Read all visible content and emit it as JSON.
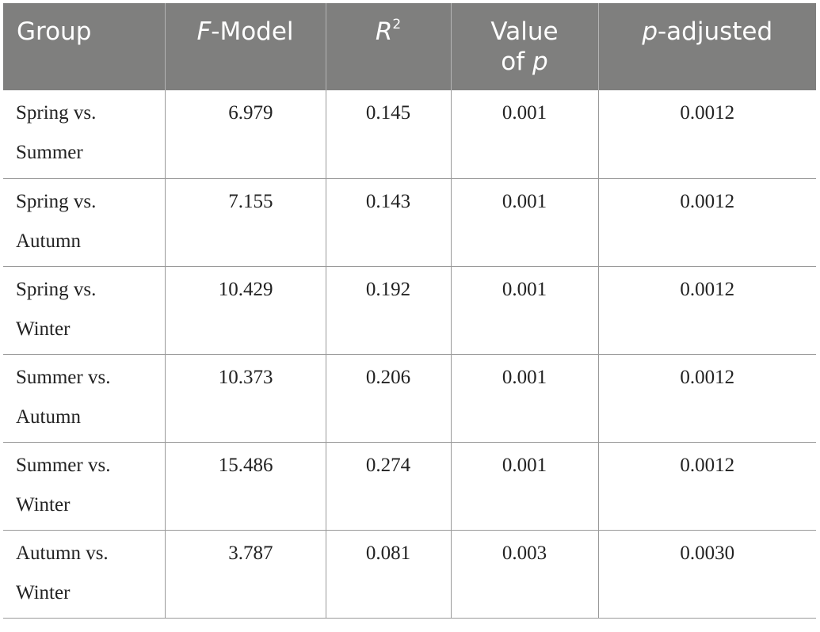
{
  "table": {
    "headers": {
      "group": "Group",
      "fmodel_italic": "F",
      "fmodel_rest": "-Model",
      "r2_italic": "R",
      "r2_sup": "2",
      "value_line1": "Value",
      "value_line2_prefix": "of ",
      "value_line2_italic": "p",
      "padj_italic": "p",
      "padj_rest": "-adjusted"
    },
    "rows": [
      {
        "group_line1": "Spring vs.",
        "group_line2": "Summer",
        "fmodel": "6.979",
        "r2": "0.145",
        "p": "0.001",
        "padj": "0.0012"
      },
      {
        "group_line1": "Spring vs.",
        "group_line2": "Autumn",
        "fmodel": "7.155",
        "r2": "0.143",
        "p": "0.001",
        "padj": "0.0012"
      },
      {
        "group_line1": "Spring vs.",
        "group_line2": "Winter",
        "fmodel": "10.429",
        "r2": "0.192",
        "p": "0.001",
        "padj": "0.0012"
      },
      {
        "group_line1": "Summer vs.",
        "group_line2": "Autumn",
        "fmodel": "10.373",
        "r2": "0.206",
        "p": "0.001",
        "padj": "0.0012"
      },
      {
        "group_line1": "Summer vs.",
        "group_line2": "Winter",
        "fmodel": "15.486",
        "r2": "0.274",
        "p": "0.001",
        "padj": "0.0012"
      },
      {
        "group_line1": "Autumn vs.",
        "group_line2": "Winter",
        "fmodel": "3.787",
        "r2": "0.081",
        "p": "0.003",
        "padj": "0.0030"
      }
    ]
  },
  "colors": {
    "header_background": "#7f7f7e",
    "header_text": "#ffffff",
    "grid_lines": "#9a9a9a"
  }
}
